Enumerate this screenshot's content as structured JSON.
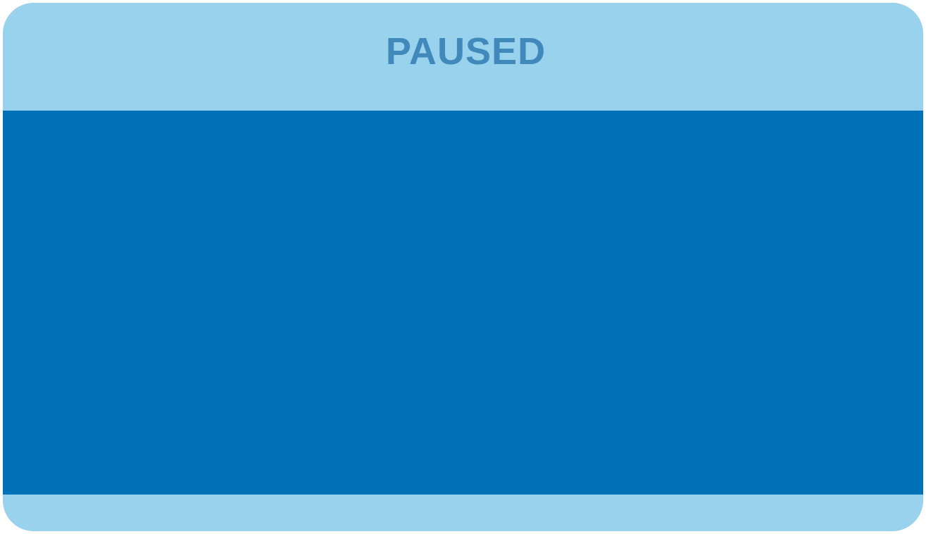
{
  "status": {
    "label": "PAUSED"
  },
  "colors": {
    "panel_light": "#98d2ec",
    "content_blue": "#0071b7",
    "status_text": "#4289bb"
  }
}
